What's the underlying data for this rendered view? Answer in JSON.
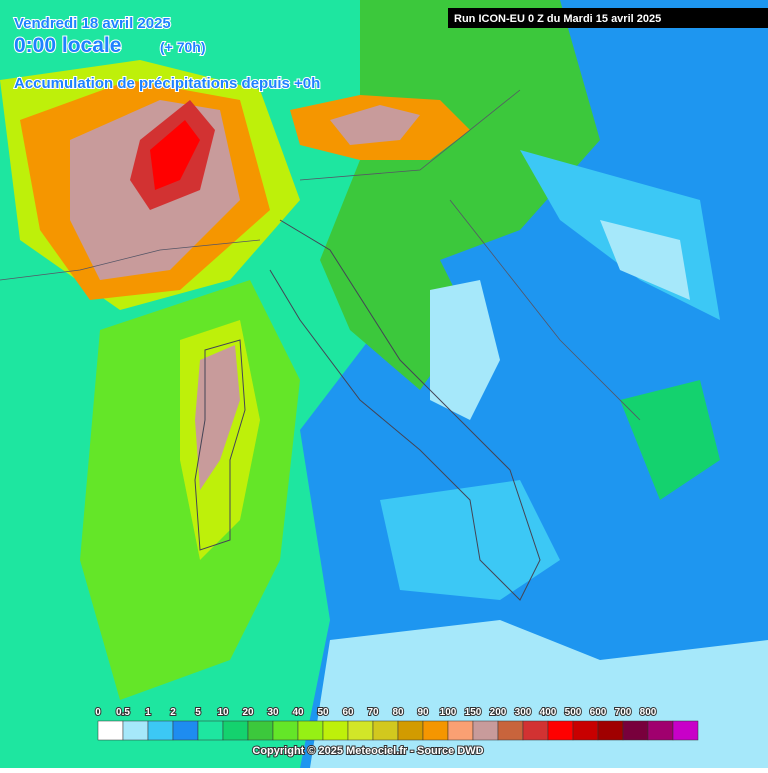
{
  "header": {
    "date": "Vendredi 18 avril 2025",
    "time": "0:00 locale",
    "offset": "(+ 70h)",
    "subtitle": "Accumulation de précipitations depuis +0h",
    "run": "Run ICON-EU 0 Z du Mardi 15 avril 2025"
  },
  "legend": {
    "items": [
      {
        "label": 0,
        "color": "#ffffff"
      },
      {
        "label": 0.5,
        "color": "#a6e8fa"
      },
      {
        "label": 1,
        "color": "#3cc8f5"
      },
      {
        "label": 2,
        "color": "#1e8cf0"
      },
      {
        "label": 5,
        "color": "#1ee6a0"
      },
      {
        "label": 10,
        "color": "#14d26e"
      },
      {
        "label": 20,
        "color": "#3cc83c"
      },
      {
        "label": 30,
        "color": "#64e628"
      },
      {
        "label": 40,
        "color": "#96f014"
      },
      {
        "label": 50,
        "color": "#bef00a"
      },
      {
        "label": 60,
        "color": "#d2e628"
      },
      {
        "label": 70,
        "color": "#d2c81e"
      },
      {
        "label": 80,
        "color": "#d29b00"
      },
      {
        "label": 90,
        "color": "#f59600"
      },
      {
        "label": 100,
        "color": "#faa073"
      },
      {
        "label": 150,
        "color": "#c89b9b"
      },
      {
        "label": 200,
        "color": "#c8643c"
      },
      {
        "label": 300,
        "color": "#d23232"
      },
      {
        "label": 400,
        "color": "#ff0000"
      },
      {
        "label": 500,
        "color": "#c80000"
      },
      {
        "label": 600,
        "color": "#a00000"
      },
      {
        "label": 700,
        "color": "#78003c"
      },
      {
        "label": 800,
        "color": "#a0006e"
      }
    ],
    "end_color": "#c800c8"
  },
  "footer": {
    "copyright": "Copyright © 2025 Meteociel.fr - Source DWD"
  }
}
